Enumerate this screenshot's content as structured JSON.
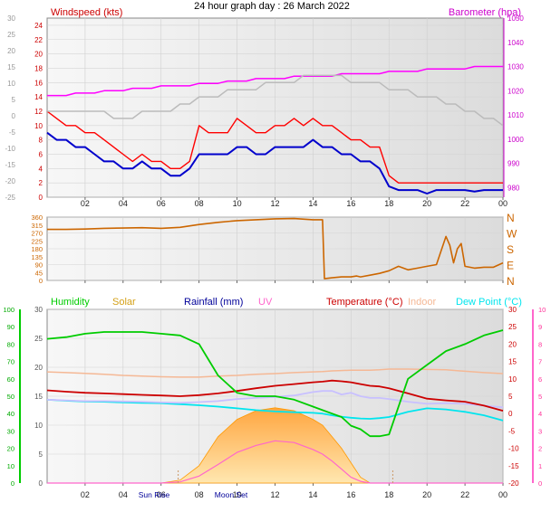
{
  "page_title": "24 hour graph day : 26 March 2022",
  "colors": {
    "wind_avg": "#0000cc",
    "wind_gust": "#ff0000",
    "barometer": "#ff00ff",
    "wind_dir": "#cc6600",
    "humidity": "#00cc00",
    "solar": "#ffb347",
    "rainfall": "#000099",
    "uv": "#ff66cc",
    "temperature": "#cc0000",
    "indoor": "#f5b895",
    "dew_point": "#00e5ee",
    "indoor_temp": "#c8c0ff",
    "grey_trace": "#bbbbbb"
  },
  "chart_data": [
    {
      "type": "line",
      "title": "Windspeed (kts)",
      "secondary_title": "Barometer (hpa)",
      "x_tick_labels": [
        "02",
        "04",
        "06",
        "08",
        "10",
        "12",
        "14",
        "16",
        "18",
        "20",
        "22",
        "00"
      ],
      "y_left": {
        "range": [
          0,
          25
        ],
        "ticks": [
          "0",
          "2",
          "4",
          "6",
          "8",
          "10",
          "12",
          "14",
          "16",
          "18",
          "20",
          "22",
          "24"
        ]
      },
      "y_right": {
        "range": [
          976,
          1050
        ],
        "ticks": [
          "980",
          "990",
          "1000",
          "1010",
          "1020",
          "1030",
          "1040",
          "1050"
        ]
      },
      "y_outer_left": {
        "ticks": [
          "-25",
          "-20",
          "-15",
          "-10",
          "-5",
          "0",
          "5",
          "10",
          "15",
          "20",
          "25",
          "30"
        ]
      },
      "x_hours": [
        0,
        0.5,
        1,
        1.5,
        2,
        2.5,
        3,
        3.5,
        4,
        4.5,
        5,
        5.5,
        6,
        6.5,
        7,
        7.5,
        8,
        8.5,
        9,
        9.5,
        10,
        10.5,
        11,
        11.5,
        12,
        12.5,
        13,
        13.5,
        14,
        14.5,
        15,
        15.5,
        16,
        16.5,
        17,
        17.5,
        18,
        18.5,
        19,
        19.5,
        20,
        20.5,
        21,
        21.5,
        22,
        22.5,
        23,
        23.5,
        24
      ],
      "series": [
        {
          "key": "gust",
          "color": "#ff0000",
          "values": [
            12,
            11,
            10,
            10,
            9,
            9,
            8,
            7,
            6,
            5,
            6,
            5,
            5,
            4,
            4,
            5,
            10,
            9,
            9,
            9,
            11,
            10,
            9,
            9,
            10,
            10,
            11,
            10,
            11,
            10,
            10,
            9,
            8,
            8,
            7,
            7,
            3,
            2,
            2,
            2,
            2,
            2,
            2,
            2,
            2,
            2,
            2,
            2,
            2
          ]
        },
        {
          "key": "average",
          "color": "#0000cc",
          "values": [
            9,
            8,
            8,
            7,
            7,
            6,
            5,
            5,
            4,
            4,
            5,
            4,
            4,
            3,
            3,
            4,
            6,
            6,
            6,
            6,
            7,
            7,
            6,
            6,
            7,
            7,
            7,
            7,
            8,
            7,
            7,
            6,
            6,
            5,
            5,
            4,
            1.5,
            1,
            1,
            1,
            0.5,
            1,
            1,
            1,
            1,
            0.8,
            1,
            1,
            1
          ]
        },
        {
          "key": "barometer",
          "color": "#ff00ff",
          "values": [
            1018,
            1018,
            1018,
            1019,
            1019,
            1019,
            1020,
            1020,
            1020,
            1021,
            1021,
            1021,
            1022,
            1022,
            1022,
            1022,
            1023,
            1023,
            1023,
            1024,
            1024,
            1024,
            1025,
            1025,
            1025,
            1025,
            1026,
            1026,
            1026,
            1026,
            1026,
            1027,
            1027,
            1027,
            1027,
            1027,
            1028,
            1028,
            1028,
            1028,
            1029,
            1029,
            1029,
            1029,
            1029,
            1030,
            1030,
            1030,
            1030
          ]
        },
        {
          "key": "grey",
          "color": "#bbbbbb",
          "values": [
            12,
            12,
            12,
            12,
            12,
            12,
            12,
            11,
            11,
            11,
            12,
            12,
            12,
            12,
            13,
            13,
            14,
            14,
            14,
            15,
            15,
            15,
            15,
            16,
            16,
            16,
            16,
            17,
            17,
            17,
            17,
            17,
            16,
            16,
            16,
            16,
            15,
            15,
            15,
            14,
            14,
            14,
            13,
            13,
            12,
            12,
            11,
            11,
            10
          ]
        }
      ]
    },
    {
      "type": "line",
      "title": "Wind direction",
      "y_left": {
        "range": [
          0,
          360
        ],
        "ticks": [
          "0",
          "45",
          "90",
          "135",
          "180",
          "225",
          "270",
          "315",
          "360"
        ]
      },
      "y_right_labels": [
        "N",
        "W",
        "S",
        "E",
        "N"
      ],
      "x_hours": [
        0,
        1,
        2,
        3,
        4,
        5,
        6,
        7,
        8,
        9,
        10,
        11,
        12,
        13,
        14,
        14.5,
        14.6,
        15,
        15.5,
        16,
        16.3,
        16.5,
        17,
        17.5,
        18,
        18.5,
        19,
        19.5,
        20,
        20.5,
        21,
        21.2,
        21.4,
        21.6,
        21.8,
        22,
        22.5,
        23,
        23.5,
        24
      ],
      "series": [
        {
          "key": "direction",
          "color": "#cc6600",
          "values": [
            290,
            290,
            292,
            296,
            298,
            300,
            296,
            302,
            318,
            330,
            340,
            345,
            350,
            352,
            345,
            345,
            10,
            15,
            20,
            20,
            25,
            20,
            30,
            40,
            55,
            80,
            60,
            70,
            80,
            90,
            250,
            200,
            100,
            180,
            210,
            80,
            70,
            75,
            75,
            100
          ]
        }
      ]
    },
    {
      "type": "area",
      "title": "Humidity / Solar / Rainfall / UV / Temperature / Indoor / Dew Point",
      "legend": [
        "Humidity",
        "Solar",
        "Rainfall (mm)",
        "UV",
        "Temperature (°C)",
        "Indoor",
        "Dew Point (°C)"
      ],
      "y_humidity": {
        "ticks": [
          "0",
          "10",
          "20",
          "30",
          "40",
          "50",
          "60",
          "70",
          "80",
          "90",
          "100"
        ]
      },
      "y_solar_uv": {
        "ticks": [
          "0",
          "5",
          "10",
          "15",
          "20",
          "25",
          "30"
        ]
      },
      "y_temp": {
        "ticks": [
          "-20",
          "-15",
          "-10",
          "-5",
          "0",
          "5",
          "10",
          "15",
          "20",
          "25",
          "30"
        ]
      },
      "y_rain": {
        "ticks": [
          "0",
          "1",
          "2",
          "3",
          "4",
          "5",
          "6",
          "7",
          "8",
          "9",
          "10"
        ]
      },
      "x_tick_labels": [
        "02",
        "04",
        "06",
        "08",
        "10",
        "12",
        "14",
        "16",
        "18",
        "20",
        "22",
        "00"
      ],
      "annotations": [
        "Sun Rise",
        "Moon Set"
      ],
      "x_hours": [
        0,
        1,
        2,
        3,
        4,
        5,
        6,
        7,
        8,
        9,
        10,
        11,
        12,
        13,
        14,
        14.5,
        15,
        15.5,
        16,
        16.5,
        17,
        17.5,
        18,
        19,
        20,
        21,
        22,
        23,
        24
      ],
      "series": [
        {
          "key": "humidity",
          "color": "#00cc00",
          "values": [
            83,
            84,
            86,
            87,
            87,
            87,
            86,
            85,
            80,
            62,
            52,
            50,
            50,
            48,
            44,
            42,
            40,
            38,
            33,
            31,
            27,
            27,
            28,
            60,
            68,
            76,
            80,
            85,
            88
          ]
        },
        {
          "key": "temperature",
          "color": "#cc0000",
          "values": [
            6.7,
            6.3,
            6,
            5.8,
            5.6,
            5.4,
            5.2,
            5,
            5.3,
            5.8,
            6.5,
            7.3,
            8,
            8.5,
            9,
            9.2,
            9.5,
            9.3,
            9,
            8.5,
            8,
            7.8,
            7.3,
            5.8,
            4.3,
            3.8,
            3.4,
            2.3,
            0.8
          ]
        },
        {
          "key": "dew_point",
          "color": "#00e5ee",
          "values": [
            4,
            3.7,
            3.5,
            3.4,
            3.2,
            3.1,
            3,
            2.7,
            2.4,
            2,
            1.5,
            1,
            0.6,
            0.4,
            0.2,
            0,
            -0.5,
            -0.9,
            -1.2,
            -1.4,
            -1.5,
            -1.3,
            -1,
            0.5,
            1.5,
            1.2,
            0.5,
            -0.5,
            -2
          ]
        },
        {
          "key": "indoor",
          "color": "#f5b895",
          "values": [
            12,
            11.8,
            11.6,
            11.3,
            11,
            10.8,
            10.6,
            10.5,
            10.5,
            10.8,
            11,
            11.3,
            11.5,
            11.8,
            12,
            12.1,
            12.3,
            12.4,
            12.5,
            12.5,
            12.5,
            12.6,
            12.8,
            12.8,
            12.7,
            12.6,
            12.2,
            11.8,
            11.5
          ]
        },
        {
          "key": "indoor_temp",
          "color": "#c8c0ff",
          "values": [
            4,
            3.8,
            3.6,
            3.6,
            3.5,
            3.4,
            3.2,
            3.1,
            3.3,
            3.6,
            4.2,
            4.5,
            4.8,
            5.2,
            6.2,
            6.5,
            6.5,
            5.5,
            6,
            5,
            4.5,
            4.5,
            4.2,
            3.4,
            2.8,
            3,
            2.8,
            2.3,
            1.8
          ]
        },
        {
          "key": "solar",
          "color": "#ffb347",
          "values": [
            0,
            0,
            0,
            0,
            0,
            0,
            0,
            0.5,
            3,
            8,
            11,
            12.5,
            13,
            12.5,
            11,
            10,
            8,
            6,
            3.5,
            1,
            0,
            0,
            0,
            0,
            0,
            0,
            0,
            0,
            0
          ]
        },
        {
          "key": "uv",
          "color": "#ff66cc",
          "values": [
            0,
            0,
            0,
            0,
            0,
            0,
            0,
            0.2,
            1.2,
            3.2,
            5.3,
            6.5,
            7.3,
            7,
            5.8,
            5,
            3.8,
            2.4,
            1,
            0.3,
            0,
            0,
            0,
            0,
            0,
            0,
            0,
            0,
            0
          ]
        }
      ]
    }
  ]
}
